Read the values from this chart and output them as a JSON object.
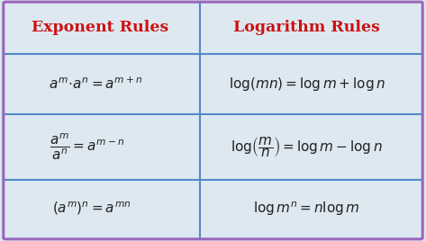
{
  "title_left": "Exponent Rules",
  "title_right": "Logarithm Rules",
  "title_color": "#cc1111",
  "formula_color": "#222222",
  "background_color": "#dde8f0",
  "cell_bg_color": "#dde8f0",
  "border_color": "#9966bb",
  "divider_color": "#5588cc",
  "row1_left": "$a^{m}\\!\\cdot\\! a^{n}=a^{m+n}$",
  "row1_right": "$\\log(mn)=\\log m+\\log n$",
  "row2_left": "$\\dfrac{a^{m}}{a^{n}}=a^{m-n}$",
  "row2_right": "$\\log\\!\\left(\\dfrac{m}{n}\\right)=\\log m-\\log n$",
  "row3_left": "$\\left(a^{m}\\right)^{n}=a^{mn}$",
  "row3_right": "$\\log m^{n}=n\\log m$",
  "figsize": [
    4.73,
    2.68
  ],
  "dpi": 100
}
